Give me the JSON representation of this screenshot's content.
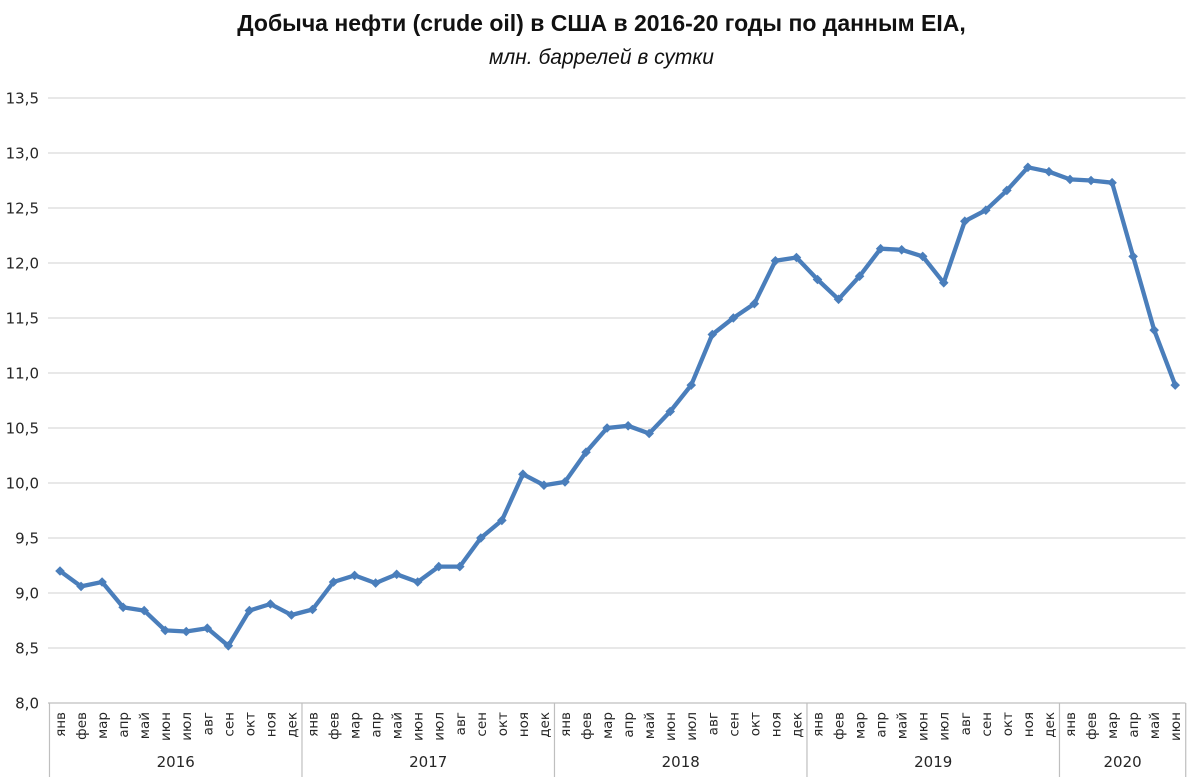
{
  "title": "Добыча нефти (crude oil) в США в 2016-20 годы по данным EIA,",
  "subtitle": "млн. баррелей в сутки",
  "colors": {
    "line": "#4a7ebb",
    "grid": "#d9d9d9",
    "axis": "#bfbfbf",
    "tick_text": "#262626",
    "title_text": "#111111",
    "background": "#ffffff"
  },
  "chart_data": {
    "type": "line",
    "title": "Добыча нефти (crude oil) в США в 2016-20 годы по данным EIA,",
    "subtitle": "млн. баррелей в сутки",
    "legend": false,
    "grid": true,
    "marker": "diamond",
    "ylim": [
      8.0,
      13.5
    ],
    "ytick_step": 0.5,
    "yticks": [
      {
        "v": 8.0,
        "label": "8,0"
      },
      {
        "v": 8.5,
        "label": "8,5"
      },
      {
        "v": 9.0,
        "label": "9,0"
      },
      {
        "v": 9.5,
        "label": "9,5"
      },
      {
        "v": 10.0,
        "label": "10,0"
      },
      {
        "v": 10.5,
        "label": "10,5"
      },
      {
        "v": 11.0,
        "label": "11,0"
      },
      {
        "v": 11.5,
        "label": "11,5"
      },
      {
        "v": 12.0,
        "label": "12,0"
      },
      {
        "v": 12.5,
        "label": "12,5"
      },
      {
        "v": 13.0,
        "label": "13,0"
      },
      {
        "v": 13.5,
        "label": "13,5"
      }
    ],
    "month_labels": [
      "янв",
      "фев",
      "мар",
      "апр",
      "май",
      "июн",
      "июл",
      "авг",
      "сен",
      "окт",
      "ноя",
      "дек"
    ],
    "years": [
      {
        "label": "2016",
        "n_months": 12
      },
      {
        "label": "2017",
        "n_months": 12
      },
      {
        "label": "2018",
        "n_months": 12
      },
      {
        "label": "2019",
        "n_months": 12
      },
      {
        "label": "2020",
        "n_months": 6
      }
    ],
    "series": [
      {
        "name": "Добыча нефти (crude oil) в США, млн. баррелей в сутки",
        "color": "#4a7ebb",
        "values": [
          9.2,
          9.06,
          9.1,
          8.87,
          8.84,
          8.66,
          8.65,
          8.68,
          8.52,
          8.84,
          8.9,
          8.8,
          8.85,
          9.1,
          9.16,
          9.09,
          9.17,
          9.1,
          9.24,
          9.24,
          9.5,
          9.66,
          10.08,
          9.98,
          10.01,
          10.28,
          10.5,
          10.52,
          10.45,
          10.65,
          10.89,
          11.35,
          11.5,
          11.63,
          12.02,
          12.05,
          11.85,
          11.67,
          11.88,
          12.13,
          12.12,
          12.06,
          11.82,
          12.38,
          12.48,
          12.66,
          12.87,
          12.83,
          12.76,
          12.75,
          12.73,
          12.06,
          11.39,
          10.89
        ]
      }
    ]
  }
}
